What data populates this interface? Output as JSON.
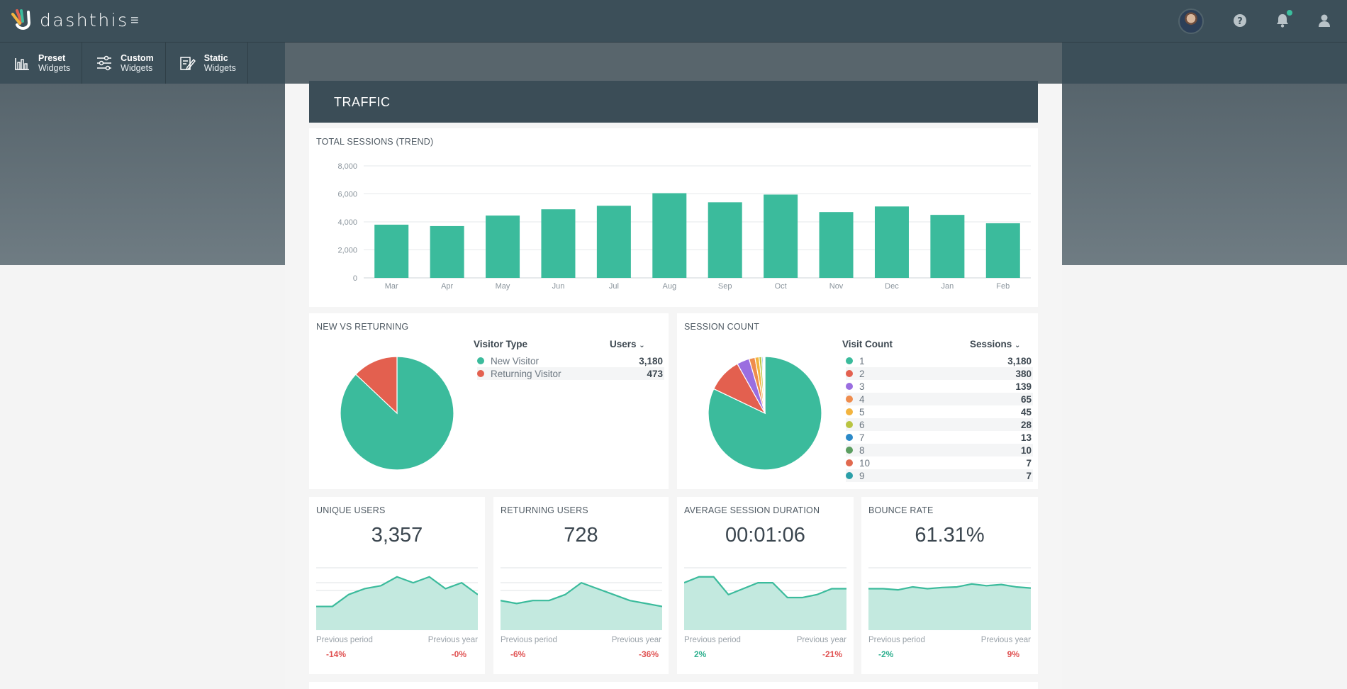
{
  "app": {
    "brand": "dashthis",
    "menu_icon": "hamburger-icon"
  },
  "widgets": [
    {
      "title": "Preset",
      "subtitle": "Widgets",
      "icon": "bar-chart-icon"
    },
    {
      "title": "Custom",
      "subtitle": "Widgets",
      "icon": "sliders-icon"
    },
    {
      "title": "Static",
      "subtitle": "Widgets",
      "icon": "edit-note-icon"
    }
  ],
  "topbar": {
    "icons": [
      "avatar",
      "help-icon",
      "bell-icon",
      "user-icon"
    ]
  },
  "section": {
    "title": "TRAFFIC"
  },
  "total_sessions": {
    "title": "TOTAL SESSIONS (TREND)"
  },
  "new_vs_returning": {
    "title": "NEW VS RETURNING",
    "col1": "Visitor Type",
    "col2": "Users",
    "rows": [
      {
        "label": "New Visitor",
        "value": "3,180",
        "color": "#3bbb9c"
      },
      {
        "label": "Returning Visitor",
        "value": "473",
        "color": "#e3604f"
      }
    ]
  },
  "session_count": {
    "title": "SESSION COUNT",
    "col1": "Visit Count",
    "col2": "Sessions",
    "rows": [
      {
        "label": "1",
        "value": "3,180",
        "color": "#3bbb9c"
      },
      {
        "label": "2",
        "value": "380",
        "color": "#e3604f"
      },
      {
        "label": "3",
        "value": "139",
        "color": "#9a6ee0"
      },
      {
        "label": "4",
        "value": "65",
        "color": "#ef8c4d"
      },
      {
        "label": "5",
        "value": "45",
        "color": "#f3b43f"
      },
      {
        "label": "6",
        "value": "28",
        "color": "#b9c441"
      },
      {
        "label": "7",
        "value": "13",
        "color": "#2b89c8"
      },
      {
        "label": "8",
        "value": "10",
        "color": "#5c9e61"
      },
      {
        "label": "10",
        "value": "7",
        "color": "#e1694f"
      },
      {
        "label": "9",
        "value": "7",
        "color": "#2b9fa8"
      }
    ]
  },
  "kpis": [
    {
      "title": "UNIQUE USERS",
      "value": "3,357",
      "prev_period_label": "Previous period",
      "prev_year_label": "Previous year",
      "prev_period": "-14%",
      "prev_year": "-0%",
      "spark": [
        4,
        4,
        6,
        7,
        7.5,
        9,
        8,
        9,
        7,
        8,
        6
      ]
    },
    {
      "title": "RETURNING USERS",
      "value": "728",
      "prev_period_label": "Previous period",
      "prev_year_label": "Previous year",
      "prev_period": "-6%",
      "prev_year": "-36%",
      "spark": [
        5,
        4.5,
        5,
        5,
        6,
        8,
        7,
        6,
        5,
        4.5,
        4
      ]
    },
    {
      "title": "AVERAGE SESSION DURATION",
      "value": "00:01:06",
      "prev_period_label": "Previous period",
      "prev_year_label": "Previous year",
      "prev_period": "2%",
      "prev_year": "-21%",
      "spark": [
        8,
        9,
        9,
        6,
        7,
        8,
        8,
        5.5,
        5.5,
        6,
        7,
        7
      ]
    },
    {
      "title": "BOUNCE RATE",
      "value": "61.31%",
      "prev_period_label": "Previous period",
      "prev_year_label": "Previous year",
      "prev_period": "-2%",
      "prev_year": "9%",
      "spark": [
        7,
        7,
        6.8,
        7.3,
        7,
        7.2,
        7.3,
        7.8,
        7.5,
        7.7,
        7.3,
        7.1
      ]
    }
  ],
  "chart_data": [
    {
      "type": "bar",
      "title": "TOTAL SESSIONS (TREND)",
      "categories": [
        "Mar",
        "Apr",
        "May",
        "Jun",
        "Jul",
        "Aug",
        "Sep",
        "Oct",
        "Nov",
        "Dec",
        "Jan",
        "Feb"
      ],
      "values": [
        3800,
        3700,
        4450,
        4900,
        5150,
        6050,
        5400,
        5950,
        4700,
        5100,
        4500,
        3900
      ],
      "ylim": [
        0,
        8000
      ],
      "yticks": [
        "0",
        "2,000",
        "4,000",
        "6,000",
        "8,000"
      ],
      "color": "#3bbb9c"
    },
    {
      "type": "pie",
      "title": "NEW VS RETURNING",
      "labels": [
        "New Visitor",
        "Returning Visitor"
      ],
      "values": [
        3180,
        473
      ]
    },
    {
      "type": "pie",
      "title": "SESSION COUNT",
      "labels": [
        "1",
        "2",
        "3",
        "4",
        "5",
        "6",
        "7",
        "8",
        "10",
        "9"
      ],
      "values": [
        3180,
        380,
        139,
        65,
        45,
        28,
        13,
        10,
        7,
        7
      ]
    }
  ]
}
